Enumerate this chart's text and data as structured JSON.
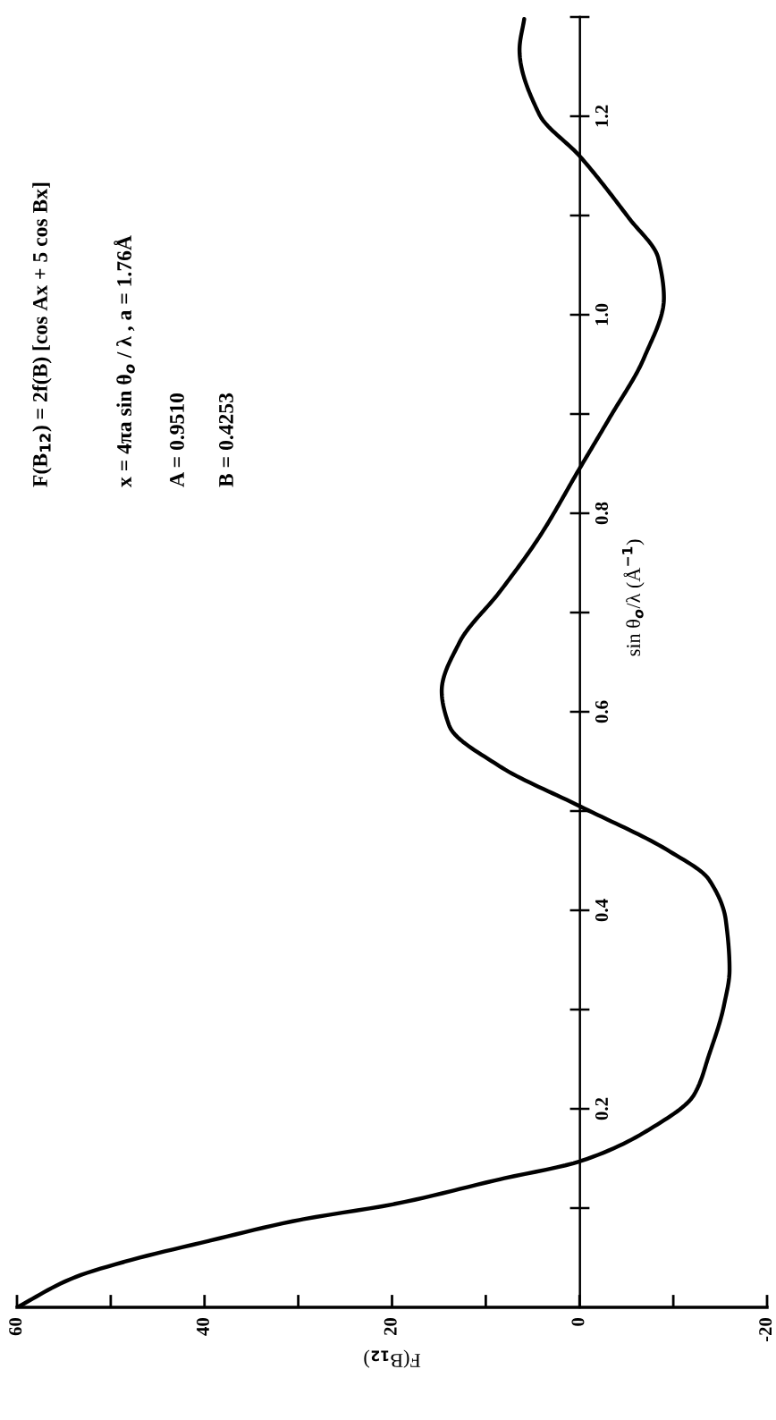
{
  "chart_data": {
    "type": "line",
    "xlabel": "F(B$_{12}$)",
    "ylabel": "sin θ$_{o}$/λ (Å$^{−1}$)",
    "annotations": [
      "F(B$_{12}$) = 2f(B) [cos Ax + 5 cos Bx]",
      "x = 4πa sin θ$_{o}$ / λ , a = 1.76Å",
      "A = 0.9510",
      "B = 0.4253"
    ],
    "x": [
      60,
      53.9,
      48.5,
      39.5,
      29.9,
      19.8,
      8.5,
      0,
      -7.4,
      -12.2,
      -13.8,
      -15.4,
      -16.0,
      -15.6,
      -13.8,
      -9.5,
      0,
      8.5,
      13.9,
      14.7,
      12.8,
      8.5,
      4.3,
      0,
      -3.2,
      -6.9,
      -9.0,
      -8.4,
      -5.3,
      0,
      4.3,
      6.4,
      5.9
    ],
    "series": [
      {
        "color": "#000000",
        "values": [
          0,
          0.03,
          0.046,
          0.067,
          0.088,
          0.104,
          0.129,
          0.147,
          0.179,
          0.214,
          0.254,
          0.304,
          0.34,
          0.39,
          0.431,
          0.46,
          0.505,
          0.545,
          0.586,
          0.621,
          0.67,
          0.721,
          0.776,
          0.845,
          0.896,
          0.957,
          1.017,
          1.057,
          1.097,
          1.16,
          1.202,
          1.267,
          1.298
        ]
      }
    ],
    "ylim": [
      0,
      1.3
    ],
    "yticks": [
      {
        "value": 0.1,
        "label": null
      },
      0.2,
      {
        "value": 0.3,
        "label": null
      },
      0.4,
      {
        "value": 0.5,
        "label": null
      },
      0.6,
      {
        "value": 0.7,
        "label": null
      },
      0.8,
      {
        "value": 0.9,
        "label": null
      },
      {
        "value": 1.0,
        "label": "1.0"
      },
      {
        "value": 1.1,
        "label": null
      },
      1.2,
      {
        "value": 1.3,
        "label": null
      }
    ],
    "xlim": [
      60,
      -20
    ],
    "xticks": [
      60,
      {
        "value": 50,
        "label": null
      },
      40,
      {
        "value": 30,
        "label": null
      },
      20,
      {
        "value": 10,
        "label": null
      },
      0,
      {
        "value": -10,
        "label": null
      },
      -20
    ],
    "grid": false,
    "legend": false,
    "marker": "none",
    "line_style": "solid"
  }
}
